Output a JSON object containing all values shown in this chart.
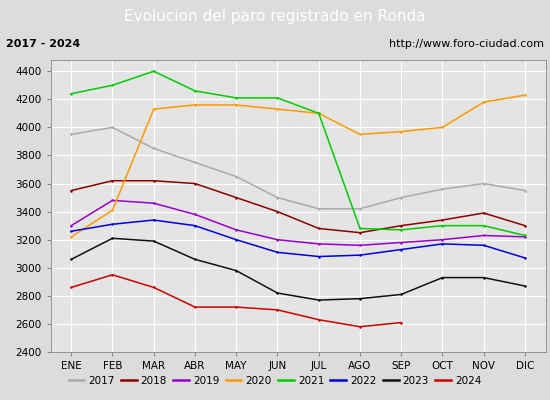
{
  "title": "Evolucion del paro registrado en Ronda",
  "subtitle_left": "2017 - 2024",
  "subtitle_right": "http://www.foro-ciudad.com",
  "xlabel_months": [
    "ENE",
    "FEB",
    "MAR",
    "ABR",
    "MAY",
    "JUN",
    "JUL",
    "AGO",
    "SEP",
    "OCT",
    "NOV",
    "DIC"
  ],
  "ylim": [
    2400,
    4480
  ],
  "yticks": [
    2400,
    2600,
    2800,
    3000,
    3200,
    3400,
    3600,
    3800,
    4000,
    4200,
    4400
  ],
  "series": {
    "2017": {
      "color": "#aaaaaa",
      "data": [
        3950,
        4000,
        3850,
        3750,
        3650,
        3500,
        3420,
        3420,
        3500,
        3560,
        3600,
        3550
      ]
    },
    "2018": {
      "color": "#8B0000",
      "data": [
        3550,
        3620,
        3620,
        3600,
        3500,
        3400,
        3280,
        3250,
        3300,
        3340,
        3390,
        3300
      ]
    },
    "2019": {
      "color": "#9900cc",
      "data": [
        3300,
        3480,
        3460,
        3380,
        3270,
        3200,
        3170,
        3160,
        3180,
        3200,
        3230,
        3220
      ]
    },
    "2020": {
      "color": "#ff9900",
      "data": [
        3220,
        3410,
        4130,
        4160,
        4160,
        4130,
        4100,
        3950,
        3970,
        4000,
        4180,
        4230
      ]
    },
    "2021": {
      "color": "#00cc00",
      "data": [
        4240,
        4300,
        4400,
        4260,
        4210,
        4210,
        4100,
        3280,
        3270,
        3300,
        3300,
        3230
      ]
    },
    "2022": {
      "color": "#0000dd",
      "data": [
        3260,
        3310,
        3340,
        3300,
        3200,
        3110,
        3080,
        3090,
        3130,
        3170,
        3160,
        3070
      ]
    },
    "2023": {
      "color": "#111111",
      "data": [
        3060,
        3210,
        3190,
        3060,
        2980,
        2820,
        2770,
        2780,
        2810,
        2930,
        2930,
        2870
      ]
    },
    "2024": {
      "color": "#cc0000",
      "data": [
        2860,
        2950,
        2860,
        2720,
        2720,
        2700,
        2630,
        2580,
        2610,
        null,
        null,
        null
      ]
    }
  },
  "title_bg_color": "#4d8ec9",
  "title_text_color": "#ffffff",
  "subtitle_bg_color": "#dcdcdc",
  "plot_bg_color": "#e4e4e4",
  "grid_color": "#ffffff",
  "title_fontsize": 11,
  "subtitle_fontsize": 8,
  "tick_fontsize": 7.5,
  "legend_fontsize": 7.5
}
